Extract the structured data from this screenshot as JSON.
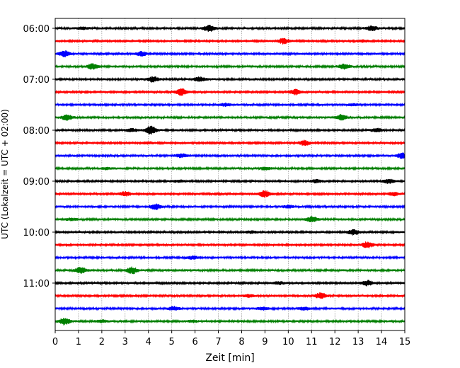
{
  "chart_data": {
    "type": "line",
    "title": "",
    "xlabel": "Zeit  [min]",
    "ylabel": "UTC (Lokalzeit = UTC + 02:00)",
    "xlim": [
      0,
      15
    ],
    "x_ticks": [
      "0",
      "1",
      "2",
      "3",
      "4",
      "5",
      "6",
      "7",
      "8",
      "9",
      "10",
      "11",
      "12",
      "13",
      "14",
      "15"
    ],
    "y_tick_labels": [
      "06:00",
      "07:00",
      "08:00",
      "09:00",
      "10:00",
      "11:00"
    ],
    "grid": "vertical dotted at each minute",
    "colors": [
      "#000000",
      "#ff0000",
      "#0000ff",
      "#008000"
    ],
    "traces": [
      {
        "label": "06:00",
        "color": "#000000",
        "events": [
          [
            6.6,
            2.0
          ],
          [
            13.6,
            1.4
          ],
          [
            1.2,
            0.6
          ]
        ]
      },
      {
        "label": "06:15",
        "color": "#ff0000",
        "events": [
          [
            9.8,
            1.6
          ],
          [
            13.2,
            0.5
          ]
        ]
      },
      {
        "label": "06:30",
        "color": "#0000ff",
        "events": [
          [
            0.4,
            1.6
          ],
          [
            3.7,
            1.2
          ]
        ]
      },
      {
        "label": "06:45",
        "color": "#008000",
        "events": [
          [
            1.6,
            1.6
          ],
          [
            12.4,
            1.5
          ]
        ]
      },
      {
        "label": "07:00",
        "color": "#000000",
        "events": [
          [
            4.2,
            1.5
          ],
          [
            6.2,
            1.2
          ]
        ]
      },
      {
        "label": "07:15",
        "color": "#ff0000",
        "events": [
          [
            5.4,
            2.0
          ],
          [
            10.3,
            1.5
          ]
        ]
      },
      {
        "label": "07:30",
        "color": "#0000ff",
        "events": [
          [
            7.3,
            0.8
          ],
          [
            12.8,
            0.5
          ]
        ]
      },
      {
        "label": "07:45",
        "color": "#008000",
        "events": [
          [
            0.5,
            1.6
          ],
          [
            12.3,
            1.6
          ]
        ]
      },
      {
        "label": "08:00",
        "color": "#000000",
        "events": [
          [
            4.1,
            2.4
          ],
          [
            3.3,
            0.8
          ],
          [
            13.8,
            1.1
          ]
        ]
      },
      {
        "label": "08:15",
        "color": "#ff0000",
        "events": [
          [
            10.7,
            1.5
          ],
          [
            4.0,
            0.5
          ]
        ]
      },
      {
        "label": "08:30",
        "color": "#0000ff",
        "events": [
          [
            5.4,
            1.0
          ],
          [
            14.9,
            1.6
          ]
        ]
      },
      {
        "label": "08:45",
        "color": "#008000",
        "events": [
          [
            9.0,
            0.8
          ],
          [
            2.2,
            0.5
          ]
        ]
      },
      {
        "label": "09:00",
        "color": "#000000",
        "events": [
          [
            14.3,
            1.2
          ],
          [
            11.2,
            0.8
          ],
          [
            5.3,
            0.5
          ]
        ]
      },
      {
        "label": "09:15",
        "color": "#ff0000",
        "events": [
          [
            9.0,
            1.9
          ],
          [
            3.0,
            1.2
          ],
          [
            14.5,
            1.0
          ]
        ]
      },
      {
        "label": "09:30",
        "color": "#0000ff",
        "events": [
          [
            4.3,
            1.6
          ],
          [
            10.0,
            0.8
          ]
        ]
      },
      {
        "label": "09:45",
        "color": "#008000",
        "events": [
          [
            11.0,
            1.5
          ],
          [
            0.7,
            0.6
          ]
        ]
      },
      {
        "label": "10:00",
        "color": "#000000",
        "events": [
          [
            12.8,
            1.6
          ],
          [
            8.4,
            0.6
          ]
        ]
      },
      {
        "label": "10:15",
        "color": "#ff0000",
        "events": [
          [
            13.4,
            1.8
          ]
        ]
      },
      {
        "label": "10:30",
        "color": "#0000ff",
        "events": [
          [
            5.9,
            0.8
          ]
        ]
      },
      {
        "label": "10:45",
        "color": "#008000",
        "events": [
          [
            1.1,
            1.8
          ],
          [
            3.3,
            1.9
          ]
        ]
      },
      {
        "label": "11:00",
        "color": "#000000",
        "events": [
          [
            13.4,
            1.5
          ],
          [
            9.6,
            0.8
          ]
        ]
      },
      {
        "label": "11:15",
        "color": "#ff0000",
        "events": [
          [
            11.4,
            1.8
          ],
          [
            8.3,
            0.6
          ]
        ]
      },
      {
        "label": "11:30",
        "color": "#0000ff",
        "events": [
          [
            5.1,
            1.0
          ],
          [
            10.7,
            0.8
          ],
          [
            8.9,
            0.7
          ]
        ]
      },
      {
        "label": "11:45",
        "color": "#008000",
        "events": [
          [
            0.4,
            2.0
          ],
          [
            2.0,
            0.6
          ],
          [
            5.9,
            0.5
          ]
        ]
      }
    ]
  }
}
